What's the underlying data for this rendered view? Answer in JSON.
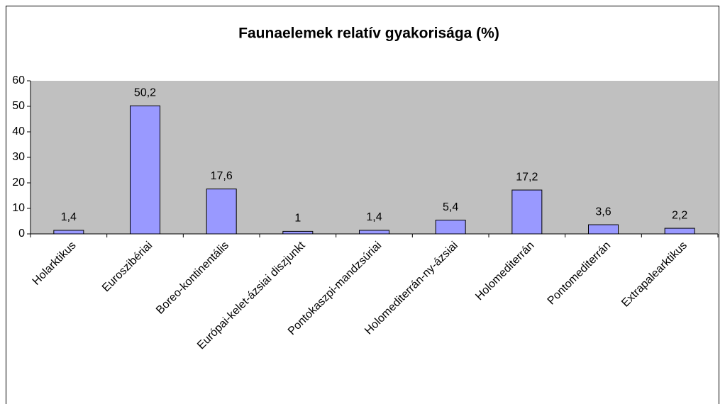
{
  "chart_data": {
    "type": "bar",
    "title": "Faunaelemek relatív gyakorisága (%)",
    "categories": [
      "Holarktikus",
      "Euroszibériai",
      "Boreo-kontinentális",
      "Európai-kelet-ázsiai diszjunkt",
      "Pontokaszpi-mandzsúriai",
      "Holomediterrán-ny-ázsiai",
      "Holomediterrán",
      "Pontomediterrán",
      "Extrapalearktikus"
    ],
    "values": [
      1.4,
      50.2,
      17.6,
      1,
      1.4,
      5.4,
      17.2,
      3.6,
      2.2
    ],
    "value_labels": [
      "1,4",
      "50,2",
      "17,6",
      "1",
      "1,4",
      "5,4",
      "17,2",
      "3,6",
      "2,2"
    ],
    "color": "#9999ff",
    "ylim": [
      0,
      60
    ],
    "yticks": [
      0,
      10,
      20,
      30,
      40,
      50,
      60
    ],
    "grid": false
  }
}
